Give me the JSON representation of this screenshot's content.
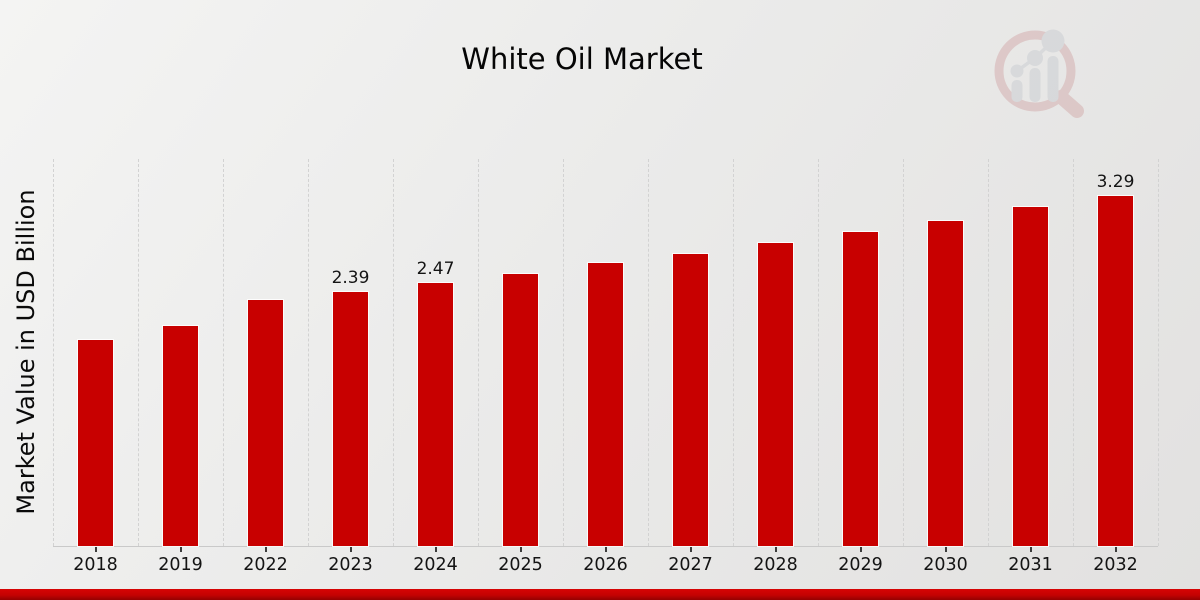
{
  "title": "White Oil Market",
  "ylabel": "Market Value in USD Billion",
  "branding": {
    "logo_icon": "magnifier-bar-chart-watermark",
    "bar_red": "#c80000",
    "banner_red_top": "#d60404",
    "banner_red_bottom": "#940101",
    "logo_pink": "#cf9f9f",
    "logo_gray": "#c3c6cc"
  },
  "chart_data": {
    "type": "bar",
    "title": "White Oil Market",
    "xlabel": "",
    "ylabel": "Market Value in USD Billion",
    "categories": [
      "2018",
      "2019",
      "2022",
      "2023",
      "2024",
      "2025",
      "2026",
      "2027",
      "2028",
      "2029",
      "2030",
      "2031",
      "2032"
    ],
    "values": [
      1.94,
      2.07,
      2.31,
      2.39,
      2.47,
      2.56,
      2.66,
      2.75,
      2.85,
      2.95,
      3.06,
      3.19,
      3.29
    ],
    "labels": [
      "",
      "",
      "",
      "2.39",
      "2.47",
      "",
      "",
      "",
      "",
      "",
      "",
      "",
      "3.29"
    ],
    "ylim": [
      0,
      3.64
    ],
    "bar_color": "#c80000",
    "grid": "vertical-dashed",
    "legend": "none",
    "y_axis_ticks": "none"
  }
}
